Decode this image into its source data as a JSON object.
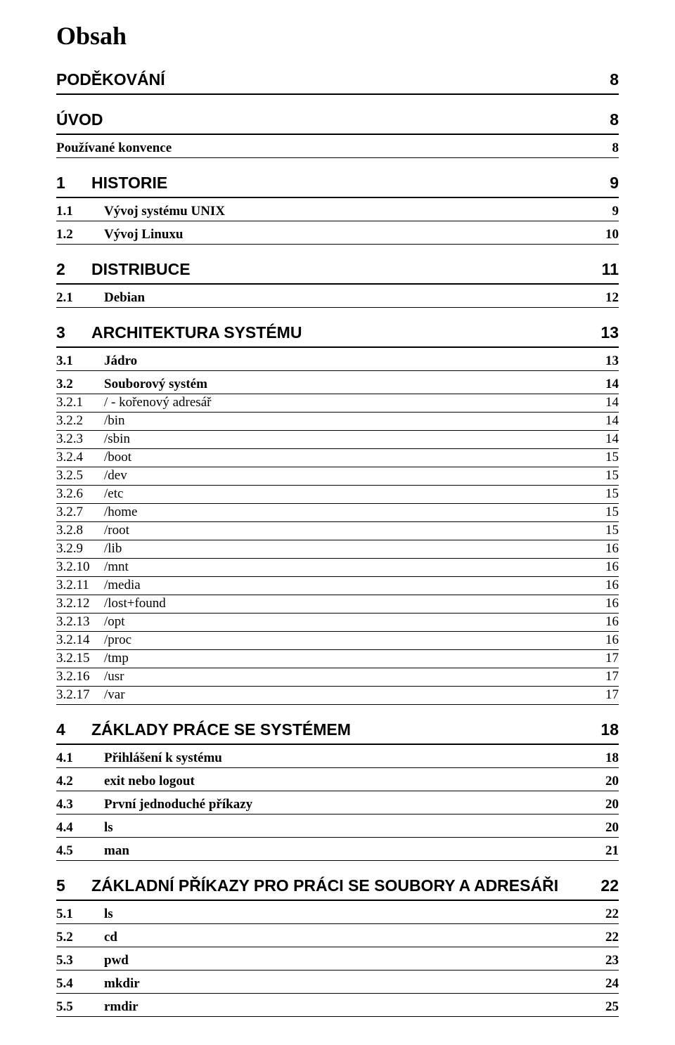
{
  "docTitle": "Obsah",
  "colors": {
    "text": "#000000",
    "bg": "#ffffff",
    "rule": "#000000"
  },
  "fonts": {
    "titleFamily": "Times New Roman",
    "chapterFamily": "Arial",
    "bodyFamily": "Times New Roman",
    "titleSize": 36,
    "chapterSize": 23,
    "subSize": 19,
    "leafSize": 19
  },
  "toc": {
    "preChapters": [
      {
        "label": "PODĚKOVÁNÍ",
        "page": "8",
        "rule": "thick"
      },
      {
        "label": "ÚVOD",
        "page": "8",
        "rule": "thick"
      }
    ],
    "preSubs": [
      {
        "label": "Používané konvence",
        "page": "8",
        "rule": "mid",
        "numWidth": 0
      }
    ],
    "chapters": [
      {
        "num": "1",
        "label": "HISTORIE",
        "page": "9",
        "rule": "thick",
        "subs": [
          {
            "num": "1.1",
            "label": "Vývoj systému UNIX",
            "page": "9",
            "rule": "mid"
          },
          {
            "num": "1.2",
            "label": "Vývoj Linuxu",
            "page": "10",
            "rule": "mid"
          }
        ]
      },
      {
        "num": "2",
        "label": "DISTRIBUCE",
        "page": "11",
        "rule": "thick",
        "subs": [
          {
            "num": "2.1",
            "label": "Debian",
            "page": "12",
            "rule": "mid"
          }
        ]
      },
      {
        "num": "3",
        "label": "ARCHITEKTURA SYSTÉMU",
        "page": "13",
        "rule": "thick",
        "subs": [
          {
            "num": "3.1",
            "label": "Jádro",
            "page": "13",
            "rule": "mid"
          },
          {
            "num": "3.2",
            "label": "Souborový systém",
            "page": "14",
            "rule": "mid",
            "leaves": [
              {
                "num": "3.2.1",
                "label": "/ - kořenový adresář",
                "page": "14"
              },
              {
                "num": "3.2.2",
                "label": "/bin",
                "page": "14"
              },
              {
                "num": "3.2.3",
                "label": "/sbin",
                "page": "14"
              },
              {
                "num": "3.2.4",
                "label": "/boot",
                "page": "15"
              },
              {
                "num": "3.2.5",
                "label": "/dev",
                "page": "15"
              },
              {
                "num": "3.2.6",
                "label": "/etc",
                "page": "15"
              },
              {
                "num": "3.2.7",
                "label": "/home",
                "page": "15"
              },
              {
                "num": "3.2.8",
                "label": "/root",
                "page": "15"
              },
              {
                "num": "3.2.9",
                "label": "/lib",
                "page": "16"
              },
              {
                "num": "3.2.10",
                "label": "/mnt",
                "page": "16"
              },
              {
                "num": "3.2.11",
                "label": "/media",
                "page": "16"
              },
              {
                "num": "3.2.12",
                "label": "/lost+found",
                "page": "16"
              },
              {
                "num": "3.2.13",
                "label": "/opt",
                "page": "16"
              },
              {
                "num": "3.2.14",
                "label": "/proc",
                "page": "16"
              },
              {
                "num": "3.2.15",
                "label": "/tmp",
                "page": "17"
              },
              {
                "num": "3.2.16",
                "label": "/usr",
                "page": "17"
              },
              {
                "num": "3.2.17",
                "label": "/var",
                "page": "17"
              }
            ]
          }
        ]
      },
      {
        "num": "4",
        "label": "ZÁKLADY PRÁCE SE SYSTÉMEM",
        "page": "18",
        "rule": "thick",
        "subs": [
          {
            "num": "4.1",
            "label": "Přihlášení k systému",
            "page": "18",
            "rule": "mid"
          },
          {
            "num": "4.2",
            "label": "exit nebo logout",
            "page": "20",
            "rule": "mid"
          },
          {
            "num": "4.3",
            "label": "První jednoduché příkazy",
            "page": "20",
            "rule": "mid"
          },
          {
            "num": "4.4",
            "label": "ls",
            "page": "20",
            "rule": "mid"
          },
          {
            "num": "4.5",
            "label": "man",
            "page": "21",
            "rule": "mid"
          }
        ]
      },
      {
        "num": "5",
        "label": "ZÁKLADNÍ PŘÍKAZY PRO PRÁCI SE SOUBORY A ADRESÁŘI",
        "page": "22",
        "rule": "thick",
        "subs": [
          {
            "num": "5.1",
            "label": "ls",
            "page": "22",
            "rule": "mid"
          },
          {
            "num": "5.2",
            "label": "cd",
            "page": "22",
            "rule": "mid"
          },
          {
            "num": "5.3",
            "label": "pwd",
            "page": "23",
            "rule": "mid"
          },
          {
            "num": "5.4",
            "label": "mkdir",
            "page": "24",
            "rule": "mid"
          },
          {
            "num": "5.5",
            "label": "rmdir",
            "page": "25",
            "rule": "thin"
          }
        ]
      }
    ]
  }
}
